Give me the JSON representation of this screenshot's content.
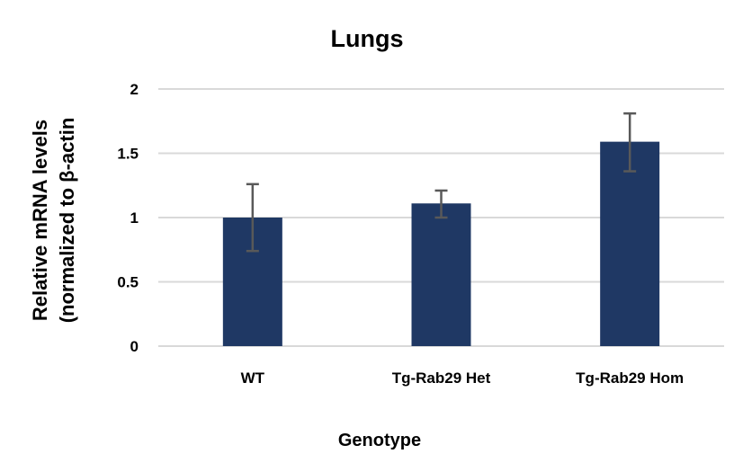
{
  "chart_data": {
    "type": "bar",
    "title": "Lungs",
    "xlabel": "Genotype",
    "ylabel_lines": [
      "Relative mRNA levels",
      "(normalized to β-actin"
    ],
    "categories": [
      "WT",
      "Tg-Rab29 Het",
      "Tg-Rab29 Hom"
    ],
    "values": [
      1.0,
      1.11,
      1.59
    ],
    "error_upper": [
      1.26,
      1.21,
      1.81
    ],
    "error_lower": [
      0.74,
      1.0,
      1.36
    ],
    "ylim": [
      0,
      2
    ],
    "yticks": [
      0,
      0.5,
      1,
      1.5,
      2
    ],
    "ytick_labels": [
      "0",
      "0.5",
      "1",
      "1.5",
      "2"
    ],
    "grid": true,
    "bar_color": "#1f3864",
    "error_color": "#595959",
    "grid_color": "#d9d9d9"
  }
}
